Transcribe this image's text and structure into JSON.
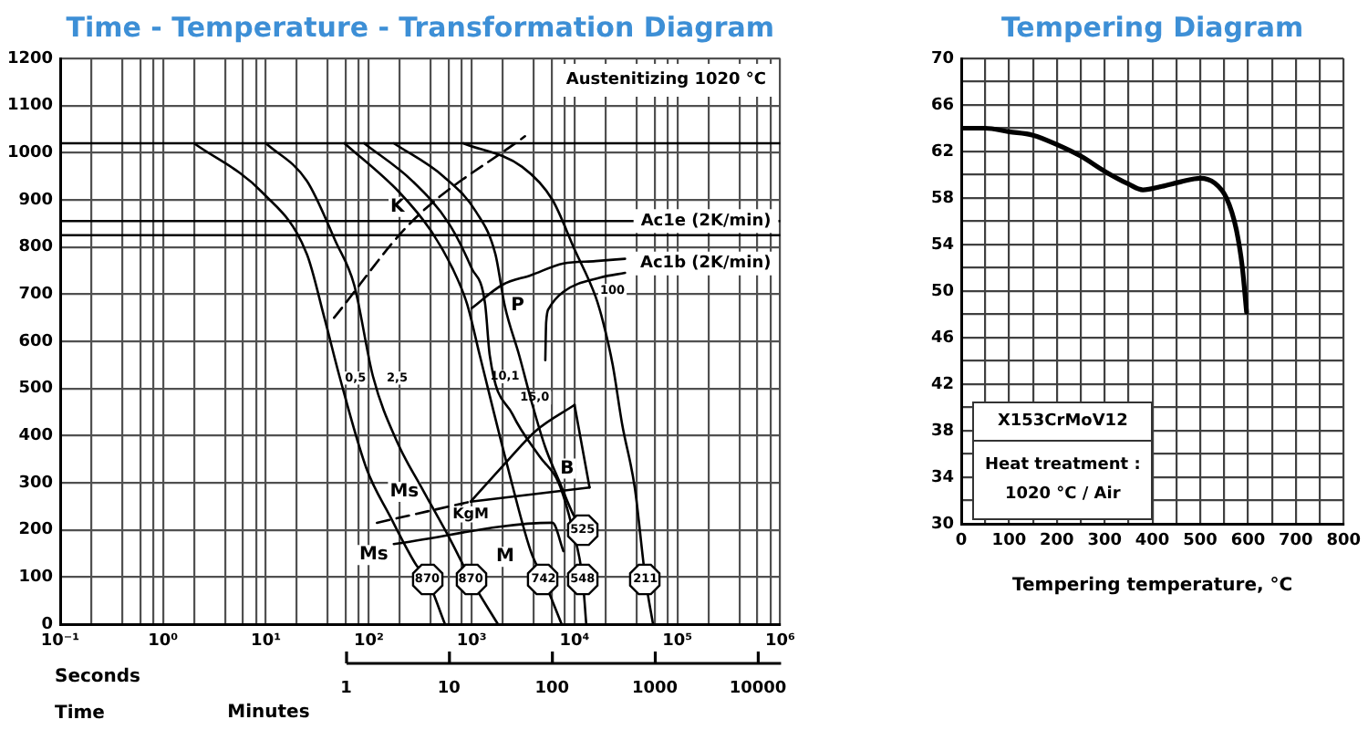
{
  "chart_data": [
    {
      "type": "line",
      "title": "Time - Temperature - Transformation Diagram",
      "xlabel": "Seconds",
      "log": "x",
      "grid": true,
      "xlim": [
        0.1,
        1000000
      ],
      "xticks": [
        {
          "value": 0.1,
          "label": "10⁻¹"
        },
        {
          "value": 0.2,
          "label": null
        },
        {
          "value": 0.4,
          "label": null
        },
        {
          "value": 0.6,
          "label": null
        },
        {
          "value": 0.8,
          "label": null
        },
        {
          "value": 1,
          "label": "10⁰"
        },
        {
          "value": 2,
          "label": null
        },
        {
          "value": 4,
          "label": null
        },
        {
          "value": 6,
          "label": null
        },
        {
          "value": 8,
          "label": null
        },
        {
          "value": 10,
          "label": "10¹"
        },
        {
          "value": 20,
          "label": null
        },
        {
          "value": 40,
          "label": null
        },
        {
          "value": 60,
          "label": null
        },
        {
          "value": 80,
          "label": null
        },
        {
          "value": 100,
          "label": "10²"
        },
        {
          "value": 200,
          "label": null
        },
        {
          "value": 400,
          "label": null
        },
        {
          "value": 600,
          "label": null
        },
        {
          "value": 800,
          "label": null
        },
        {
          "value": 1000,
          "label": "10³"
        },
        {
          "value": 2000,
          "label": null
        },
        {
          "value": 4000,
          "label": null
        },
        {
          "value": 6000,
          "label": null
        },
        {
          "value": 8000,
          "label": null
        },
        {
          "value": 10000,
          "label": "10⁴"
        },
        {
          "value": 20000,
          "label": null
        },
        {
          "value": 40000,
          "label": null
        },
        {
          "value": 60000,
          "label": null
        },
        {
          "value": 80000,
          "label": null
        },
        {
          "value": 100000,
          "label": "10⁵"
        },
        {
          "value": 200000,
          "label": null
        },
        {
          "value": 400000,
          "label": null
        },
        {
          "value": 600000,
          "label": null
        },
        {
          "value": 800000,
          "label": null
        },
        {
          "value": 1000000,
          "label": "10⁶"
        }
      ],
      "ylim": [
        0,
        1200
      ],
      "yticks": [
        0,
        100,
        200,
        300,
        400,
        500,
        600,
        700,
        800,
        900,
        1000,
        1100,
        1200
      ],
      "ref_lines": [
        {
          "axis": "y",
          "value": 855,
          "label": "Ac1e (2K/min)"
        },
        {
          "axis": "y",
          "value": 825,
          "label": "Ac1b (2K/min)"
        }
      ],
      "annotations": [
        "Austenitizing 1020 °C",
        "Time",
        "M",
        "KgM",
        "0,5",
        "2,5",
        "100",
        {
          "text": "K",
          "x": 190,
          "y": 885
        },
        {
          "text": "P",
          "x": 2800,
          "y": 675
        },
        {
          "text": "B",
          "x": 8500,
          "y": 330
        },
        {
          "text": "10,1",
          "x": 2100,
          "y": 525
        },
        {
          "text": "15,0",
          "x": 4100,
          "y": 480
        },
        {
          "text": "870",
          "x": 370,
          "y": 95
        },
        {
          "text": "870",
          "x": 980,
          "y": 95
        },
        {
          "text": "742",
          "x": 5000,
          "y": 95
        },
        {
          "text": "548",
          "x": 12000,
          "y": 95
        },
        {
          "text": "525",
          "x": 12000,
          "y": 200
        },
        {
          "text": "211",
          "x": 49000,
          "y": 95
        }
      ],
      "series": [
        {
          "color": "#000000",
          "x": [
            2,
            9.3,
            25,
            37,
            52,
            95,
            160,
            290,
            370,
            550
          ],
          "values": [
            1020,
            915,
            785,
            650,
            525,
            330,
            230,
            125,
            95,
            0
          ]
        },
        {
          "color": "#000000",
          "x": [
            10,
            25,
            48,
            72,
            110,
            190,
            325,
            600,
            980,
            1800
          ],
          "values": [
            1020,
            940,
            810,
            720,
            525,
            385,
            290,
            185,
            95,
            0
          ]
        },
        {
          "color": "#000000",
          "x": [
            58,
            200,
            400,
            650,
            900,
            1200,
            2200,
            3750,
            5000,
            7500
          ],
          "values": [
            1020,
            915,
            835,
            755,
            680,
            570,
            340,
            155,
            95,
            0
          ]
        },
        {
          "color": "#000000",
          "x": [
            90,
            265,
            600,
            1000,
            1350,
            1500,
            2500,
            4600,
            7000,
            9600,
            12000,
            13000
          ],
          "values": [
            1020,
            940,
            850,
            755,
            680,
            570,
            445,
            355,
            300,
            200,
            95,
            0
          ]
        },
        {
          "color": "#000000",
          "x": [
            175,
            530,
            1100,
            1700,
            2100,
            2900,
            3900,
            5200,
            7200,
            9600,
            12000
          ],
          "values": [
            1020,
            950,
            875,
            785,
            675,
            570,
            465,
            375,
            300,
            235,
            200
          ]
        },
        {
          "color": "#000000",
          "x": [
            830,
            3100,
            6100,
            10000,
            16000,
            19000,
            23500,
            29000,
            38500,
            49000,
            58000
          ],
          "values": [
            1020,
            970,
            900,
            795,
            695,
            640,
            550,
            425,
            290,
            95,
            0
          ]
        },
        {
          "color": "#000000",
          "line_style": "dashed",
          "x": [
            46,
            265,
            3300
          ],
          "values": [
            650,
            855,
            1035
          ]
        },
        {
          "color": "#000000",
          "x": [
            1000,
            2000,
            3750,
            7800,
            16000,
            31000
          ],
          "values": [
            670,
            720,
            740,
            765,
            770,
            775
          ]
        },
        {
          "color": "#000000",
          "x": [
            5200,
            5300,
            5650,
            7800,
            17700,
            31000
          ],
          "values": [
            560,
            640,
            670,
            705,
            735,
            745
          ]
        },
        {
          "color": "#000000",
          "x": [
            980,
            2200,
            4200,
            10000
          ],
          "values": [
            260,
            345,
            410,
            465
          ]
        },
        {
          "color": "#000000",
          "x": [
            10000,
            14000
          ],
          "values": [
            465,
            290
          ]
        },
        {
          "color": "#000000",
          "x": [
            980,
            14000
          ],
          "values": [
            260,
            290
          ]
        },
        {
          "name": "Ms",
          "color": "#000000",
          "line_style": "dashed",
          "x": [
            120,
            980
          ],
          "values": [
            215,
            260
          ]
        },
        {
          "name": "Ms",
          "color": "#000000",
          "x": [
            175,
            6100,
            7800
          ],
          "values": [
            170,
            215,
            155
          ]
        },
        {
          "color": "#000000",
          "x": [
            0.1,
            1000000
          ],
          "values": [
            1020,
            1020
          ]
        }
      ]
    },
    {
      "type": "line",
      "title": "Tempering Diagram",
      "xlabel": "Tempering temperature, °C",
      "grid": true,
      "annotations": [
        "X153CrMoV12",
        "Heat treatment :",
        "1020 °C / Air"
      ],
      "xlim": [
        0,
        800
      ],
      "xticks": [
        0,
        {
          "value": 50,
          "label": null
        },
        100,
        {
          "value": 150,
          "label": null
        },
        200,
        {
          "value": 250,
          "label": null
        },
        300,
        {
          "value": 350,
          "label": null
        },
        400,
        {
          "value": 450,
          "label": null
        },
        500,
        {
          "value": 550,
          "label": null
        },
        600,
        {
          "value": 650,
          "label": null
        },
        700,
        {
          "value": 750,
          "label": null
        },
        800
      ],
      "ylim": [
        30,
        70
      ],
      "yticks": [
        30,
        {
          "value": 32,
          "label": null
        },
        34,
        {
          "value": 36,
          "label": null
        },
        38,
        {
          "value": 40,
          "label": null
        },
        42,
        {
          "value": 44,
          "label": null
        },
        46,
        {
          "value": 48,
          "label": null
        },
        50,
        {
          "value": 52,
          "label": null
        },
        54,
        {
          "value": 56,
          "label": null
        },
        58,
        {
          "value": 60,
          "label": null
        },
        62,
        {
          "value": 64,
          "label": null
        },
        66,
        {
          "value": 68,
          "label": null
        },
        70
      ],
      "x": [
        0,
        50,
        100,
        150,
        200,
        250,
        300,
        350,
        380,
        420,
        460,
        500,
        530,
        555,
        575,
        588,
        597
      ],
      "series": [
        {
          "color": "#000000",
          "values": [
            64,
            64,
            63.7,
            63.4,
            62.6,
            61.6,
            60.3,
            59.2,
            58.7,
            59,
            59.4,
            59.7,
            59.3,
            58,
            55.4,
            52.1,
            48.2
          ]
        }
      ]
    },
    {
      "type": "other",
      "annotations": [
        "Minutes",
        "1",
        "10",
        "100",
        "1000",
        "10000"
      ]
    }
  ]
}
